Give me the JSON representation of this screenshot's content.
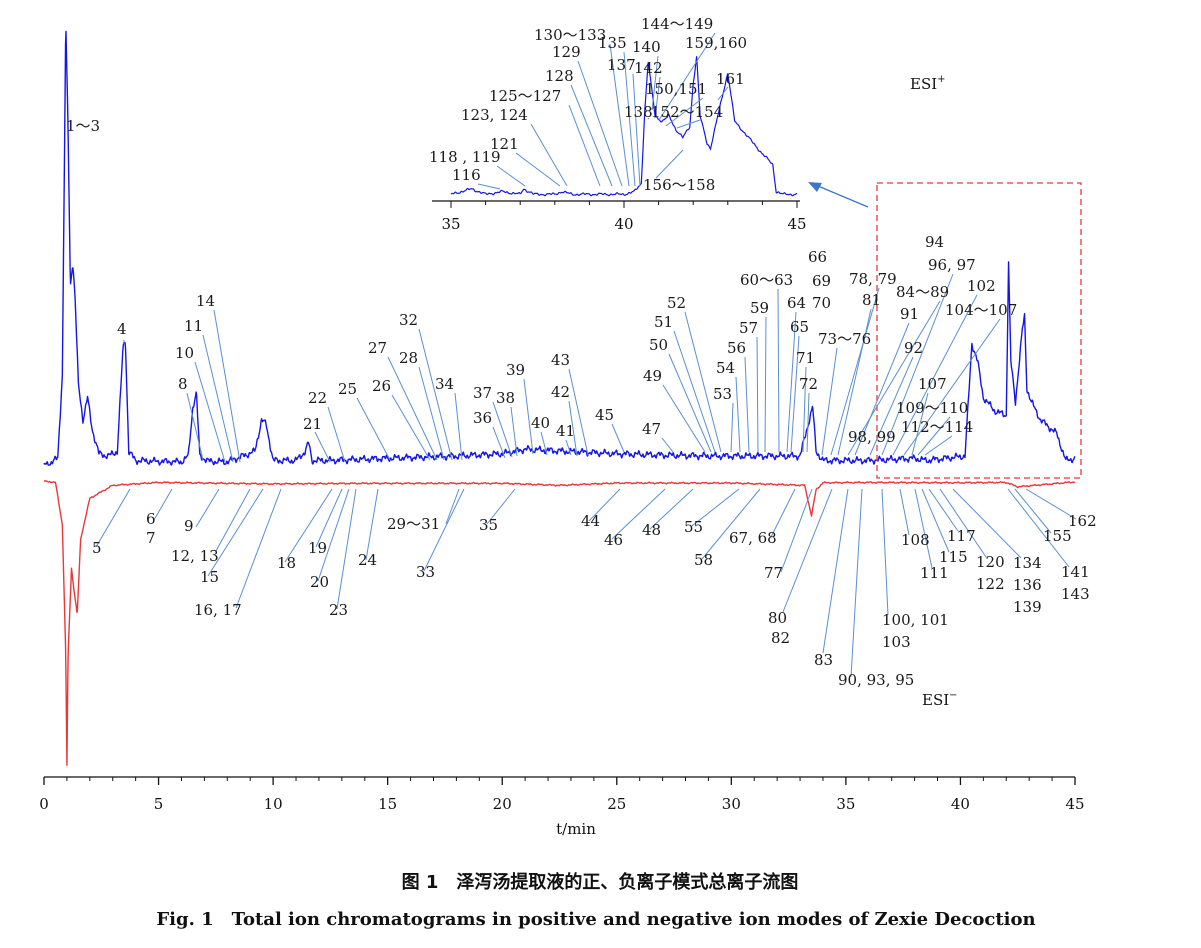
{
  "chart_data": {
    "type": "line",
    "title": "",
    "xlabel": "t/min",
    "ylabel": "",
    "xlim": [
      0,
      45
    ],
    "x_ticks": [
      0,
      5,
      10,
      15,
      20,
      25,
      30,
      35,
      40,
      45
    ],
    "inset_x_ticks": [
      35,
      40,
      45
    ],
    "grid": false,
    "colors": {
      "positive": "#1515e6",
      "negative": "#e8383a",
      "leader": "#5b8fd0",
      "box": "#e8383a",
      "arrow": "#3e77c9"
    },
    "series": [
      {
        "name": "ESI+",
        "polarity": "positive",
        "x": [
          0,
          0.3,
          0.6,
          0.8,
          0.95,
          1.05,
          1.15,
          1.25,
          1.35,
          1.5,
          1.7,
          1.9,
          2.1,
          2.4,
          2.8,
          3.2,
          3.45,
          3.55,
          3.7,
          4.0,
          5,
          6,
          6.3,
          6.5,
          6.65,
          6.8,
          7.2,
          8,
          9.2,
          9.5,
          9.7,
          10,
          11,
          11.4,
          11.55,
          11.7,
          12.5,
          15,
          18,
          20,
          21,
          23,
          25,
          27,
          29,
          31,
          33,
          33.4,
          33.55,
          33.7,
          34,
          36,
          38,
          38.5,
          40.2,
          40.5,
          40.75,
          41,
          41.5,
          42,
          42.1,
          42.2,
          42.4,
          42.7,
          42.8,
          42.9,
          43.1,
          43.5,
          44.2,
          44.4,
          44.6,
          45
        ],
        "y": [
          0,
          0.5,
          1.5,
          20,
          98,
          75,
          40,
          45,
          38,
          18,
          10,
          15,
          8,
          2.5,
          2,
          3,
          26,
          28,
          3,
          1,
          0.8,
          0.7,
          2,
          13,
          16,
          2,
          0.8,
          0.7,
          3,
          10,
          9,
          1,
          1,
          3,
          5,
          1,
          1,
          1.5,
          2,
          2.5,
          3.5,
          3,
          2.5,
          2.2,
          2,
          2,
          2,
          10,
          13,
          3,
          1,
          1,
          1.5,
          1,
          2,
          27,
          23,
          15,
          12,
          11,
          45,
          23,
          14,
          30,
          33,
          17,
          14,
          10,
          7,
          4,
          1,
          1.5
        ]
      },
      {
        "name": "ESI−",
        "polarity": "negative",
        "x": [
          0,
          0.5,
          0.8,
          0.95,
          1.0,
          1.05,
          1.2,
          1.3,
          1.45,
          1.6,
          2,
          3,
          5,
          10,
          14,
          20,
          22.5,
          25,
          30,
          33.2,
          33.5,
          33.7,
          34,
          36,
          40,
          42,
          42.5,
          45
        ],
        "y": [
          0,
          0.5,
          15,
          60,
          98,
          60,
          30,
          37,
          46,
          20,
          6,
          1.5,
          0.5,
          1,
          0.8,
          0.8,
          1.5,
          0.7,
          0.7,
          1.5,
          12,
          3,
          0.6,
          0.5,
          0.6,
          0.5,
          2,
          0.3
        ]
      }
    ],
    "inset_series": {
      "name": "ESI+ (35–45 min)",
      "x": [
        35,
        35.3,
        35.6,
        36,
        36.5,
        37,
        37.1,
        37.4,
        37.8,
        38,
        38.2,
        38.5,
        39,
        39.5,
        40,
        40.3,
        40.5,
        40.6,
        40.7,
        40.9,
        41.1,
        41.3,
        41.5,
        41.7,
        41.9,
        42,
        42.1,
        42.2,
        42.4,
        42.5,
        42.8,
        43.0,
        43.2,
        43.6,
        44.0,
        44.3,
        44.4,
        44.6,
        45
      ],
      "y": [
        1,
        2,
        3,
        1,
        2,
        1,
        3,
        1,
        1,
        1,
        2,
        1,
        1,
        1,
        1,
        2,
        5,
        32,
        50,
        30,
        28,
        30,
        25,
        22,
        26,
        42,
        52,
        30,
        20,
        18,
        35,
        46,
        28,
        22,
        16,
        12,
        2,
        1,
        1
      ]
    },
    "annotations": {
      "positive": [
        "1～3",
        "4",
        "8",
        "10",
        "11",
        "14",
        "21",
        "22",
        "25",
        "26",
        "27",
        "28",
        "32",
        "34",
        "36",
        "37",
        "38",
        "39",
        "40",
        "41",
        "42",
        "43",
        "45",
        "47",
        "49",
        "50",
        "51",
        "52",
        "53",
        "54",
        "56",
        "57",
        "59",
        "60～63",
        "64",
        "65",
        "66",
        "69",
        "70",
        "71",
        "72",
        "73～76",
        "78, 79",
        "81",
        "84～89",
        "91",
        "92",
        "94",
        "96, 97",
        "98, 99",
        "102",
        "104～107",
        "107",
        "109～110",
        "112～114"
      ],
      "negative": [
        "5",
        "6",
        "7",
        "9",
        "12, 13",
        "15",
        "16, 17",
        "18",
        "19",
        "20",
        "23",
        "24",
        "29～31",
        "33",
        "35",
        "44",
        "46",
        "48",
        "55",
        "58",
        "67, 68",
        "77",
        "80",
        "82",
        "83",
        "90, 93, 95",
        "100, 101",
        "103",
        "108",
        "111",
        "115",
        "117",
        "120",
        "122",
        "134",
        "136",
        "139",
        "141",
        "143",
        "155",
        "162"
      ],
      "inset": [
        "116",
        "118 , 119",
        "121",
        "123, 124",
        "125～127",
        "128",
        "129",
        "130～133",
        "135",
        "137",
        "138",
        "140",
        "142",
        "144～149",
        "150,151",
        "152～154",
        "156～158",
        "159,160",
        "161"
      ]
    },
    "ion_mode_labels": {
      "positive": "ESI",
      "positive_sup": "+",
      "negative": "ESI",
      "negative_sup": "−"
    }
  },
  "caption": {
    "cn": "图 1　泽泻汤提取液的正、负离子模式总离子流图",
    "en": "Fig. 1　Total ion chromatograms in positive and negative ion modes of Zexie Decoction"
  }
}
